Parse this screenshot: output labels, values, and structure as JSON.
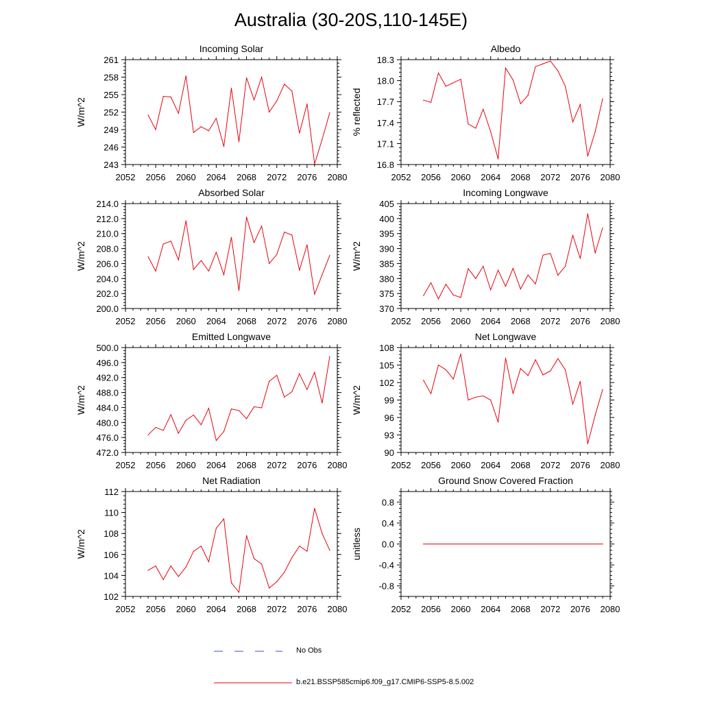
{
  "title": "Australia (30-20S,110-145E)",
  "legend": {
    "obs_label": "No Obs",
    "model_label": "b.e21.BSSP585cmip6.f09_g17.CMIP6-SSP5-8.5.002",
    "obs_color": "#3b4bc8",
    "model_color": "#e8000b"
  },
  "chart_data": [
    {
      "type": "line",
      "title": "Incoming Solar",
      "ylabel": "W/m^2",
      "xlim": [
        2052,
        2080
      ],
      "ylim": [
        243,
        261
      ],
      "xticks": [
        "2052",
        "2056",
        "2060",
        "2064",
        "2068",
        "2072",
        "2076",
        "2080"
      ],
      "yticks": [
        "243",
        "246",
        "249",
        "252",
        "255",
        "258",
        "261"
      ],
      "x": [
        2055,
        2056,
        2057,
        2058,
        2059,
        2060,
        2061,
        2062,
        2063,
        2064,
        2065,
        2066,
        2067,
        2068,
        2069,
        2070,
        2071,
        2072,
        2073,
        2074,
        2075,
        2076,
        2077,
        2078,
        2079
      ],
      "series": [
        {
          "values": [
            251.5,
            249.0,
            254.7,
            254.6,
            251.8,
            258.2,
            248.5,
            249.5,
            248.8,
            250.9,
            246.1,
            256.1,
            246.9,
            257.9,
            254.1,
            258.0,
            252.0,
            253.9,
            256.8,
            255.6,
            248.4,
            253.4,
            243.1,
            247.3,
            251.9
          ]
        }
      ]
    },
    {
      "type": "line",
      "title": "Albedo",
      "ylabel": "% reflected",
      "xlim": [
        2052,
        2080
      ],
      "ylim": [
        16.8,
        18.3
      ],
      "xticks": [
        "2052",
        "2056",
        "2060",
        "2064",
        "2068",
        "2072",
        "2076",
        "2080"
      ],
      "yticks": [
        "16.8",
        "17.1",
        "17.4",
        "17.7",
        "18.0",
        "18.3"
      ],
      "x": [
        2055,
        2056,
        2057,
        2058,
        2059,
        2060,
        2061,
        2062,
        2063,
        2064,
        2065,
        2066,
        2067,
        2068,
        2069,
        2070,
        2071,
        2072,
        2073,
        2074,
        2075,
        2076,
        2077,
        2078,
        2079
      ],
      "series": [
        {
          "values": [
            17.72,
            17.69,
            18.11,
            17.92,
            17.97,
            18.02,
            17.38,
            17.32,
            17.59,
            17.27,
            16.88,
            18.18,
            18.01,
            17.67,
            17.79,
            18.2,
            18.24,
            18.28,
            18.14,
            17.92,
            17.41,
            17.66,
            16.92,
            17.27,
            17.74
          ]
        }
      ]
    },
    {
      "type": "line",
      "title": "Absorbed Solar",
      "ylabel": "W/m^2",
      "xlim": [
        2052,
        2080
      ],
      "ylim": [
        200.0,
        214.0
      ],
      "xticks": [
        "2052",
        "2056",
        "2060",
        "2064",
        "2068",
        "2072",
        "2076",
        "2080"
      ],
      "yticks": [
        "200.0",
        "202.0",
        "204.0",
        "206.0",
        "208.0",
        "210.0",
        "212.0",
        "214.0"
      ],
      "x": [
        2055,
        2056,
        2057,
        2058,
        2059,
        2060,
        2061,
        2062,
        2063,
        2064,
        2065,
        2066,
        2067,
        2068,
        2069,
        2070,
        2071,
        2072,
        2073,
        2074,
        2075,
        2076,
        2077,
        2078,
        2079
      ],
      "series": [
        {
          "values": [
            206.9,
            205.0,
            208.6,
            209.0,
            206.5,
            211.7,
            205.2,
            206.4,
            205.0,
            207.5,
            204.5,
            209.5,
            202.4,
            212.2,
            208.8,
            211.0,
            206.0,
            207.2,
            210.2,
            209.8,
            205.1,
            208.5,
            201.9,
            204.5,
            207.1
          ]
        }
      ]
    },
    {
      "type": "line",
      "title": "Incoming Longwave",
      "ylabel": "W/m^2",
      "xlim": [
        2052,
        2080
      ],
      "ylim": [
        370,
        405
      ],
      "xticks": [
        "2052",
        "2056",
        "2060",
        "2064",
        "2068",
        "2072",
        "2076",
        "2080"
      ],
      "yticks": [
        "370",
        "375",
        "380",
        "385",
        "390",
        "395",
        "400",
        "405"
      ],
      "x": [
        2055,
        2056,
        2057,
        2058,
        2059,
        2060,
        2061,
        2062,
        2063,
        2064,
        2065,
        2066,
        2067,
        2068,
        2069,
        2070,
        2071,
        2072,
        2073,
        2074,
        2075,
        2076,
        2077,
        2078,
        2079
      ],
      "series": [
        {
          "values": [
            374.3,
            378.6,
            373.2,
            378.1,
            374.5,
            373.7,
            383.3,
            380.0,
            384.1,
            376.2,
            382.8,
            377.4,
            383.4,
            376.5,
            381.2,
            378.2,
            387.8,
            388.4,
            381.1,
            384.1,
            394.4,
            386.7,
            401.6,
            388.5,
            396.9
          ]
        }
      ]
    },
    {
      "type": "line",
      "title": "Emitted Longwave",
      "ylabel": "W/m^2",
      "xlim": [
        2052,
        2080
      ],
      "ylim": [
        472.0,
        500.0
      ],
      "xticks": [
        "2052",
        "2056",
        "2060",
        "2064",
        "2068",
        "2072",
        "2076",
        "2080"
      ],
      "yticks": [
        "472.0",
        "476.0",
        "480.0",
        "484.0",
        "488.0",
        "492.0",
        "496.0",
        "500.0"
      ],
      "x": [
        2055,
        2056,
        2057,
        2058,
        2059,
        2060,
        2061,
        2062,
        2063,
        2064,
        2065,
        2066,
        2067,
        2068,
        2069,
        2070,
        2071,
        2072,
        2073,
        2074,
        2075,
        2076,
        2077,
        2078,
        2079
      ],
      "series": [
        {
          "values": [
            476.7,
            478.7,
            477.9,
            482.1,
            477.1,
            480.6,
            482.0,
            479.4,
            483.8,
            475.2,
            477.6,
            483.6,
            483.2,
            481.0,
            484.2,
            483.9,
            491.0,
            492.6,
            486.8,
            488.2,
            493.0,
            488.8,
            493.4,
            485.2,
            497.6
          ]
        }
      ]
    },
    {
      "type": "line",
      "title": "Net Longwave",
      "ylabel": "W/m^2",
      "xlim": [
        2052,
        2080
      ],
      "ylim": [
        90,
        108
      ],
      "xticks": [
        "2052",
        "2056",
        "2060",
        "2064",
        "2068",
        "2072",
        "2076",
        "2080"
      ],
      "yticks": [
        "90",
        "93",
        "96",
        "99",
        "102",
        "105",
        "108"
      ],
      "x": [
        2055,
        2056,
        2057,
        2058,
        2059,
        2060,
        2061,
        2062,
        2063,
        2064,
        2065,
        2066,
        2067,
        2068,
        2069,
        2070,
        2071,
        2072,
        2073,
        2074,
        2075,
        2076,
        2077,
        2078,
        2079
      ],
      "series": [
        {
          "values": [
            102.4,
            100.1,
            105.0,
            104.2,
            102.6,
            106.9,
            99.0,
            99.5,
            99.7,
            99.0,
            95.2,
            106.2,
            100.1,
            104.4,
            103.2,
            105.9,
            103.3,
            104.0,
            106.1,
            104.2,
            98.3,
            102.2,
            91.5,
            96.4,
            100.8
          ]
        }
      ]
    },
    {
      "type": "line",
      "title": "Net Radiation",
      "ylabel": "W/m^2",
      "xlim": [
        2052,
        2080
      ],
      "ylim": [
        102,
        112
      ],
      "xticks": [
        "2052",
        "2056",
        "2060",
        "2064",
        "2068",
        "2072",
        "2076",
        "2080"
      ],
      "yticks": [
        "102",
        "104",
        "106",
        "108",
        "110",
        "112"
      ],
      "x": [
        2055,
        2056,
        2057,
        2058,
        2059,
        2060,
        2061,
        2062,
        2063,
        2064,
        2065,
        2066,
        2067,
        2068,
        2069,
        2070,
        2071,
        2072,
        2073,
        2074,
        2075,
        2076,
        2077,
        2078,
        2079
      ],
      "series": [
        {
          "values": [
            104.5,
            104.9,
            103.6,
            104.9,
            103.9,
            104.8,
            106.3,
            106.8,
            105.3,
            108.5,
            109.4,
            103.3,
            102.4,
            107.8,
            105.6,
            105.1,
            102.8,
            103.4,
            104.3,
            105.7,
            106.8,
            106.3,
            110.4,
            108.0,
            106.4
          ]
        }
      ]
    },
    {
      "type": "line",
      "title": "Ground Snow Covered Fraction",
      "ylabel": "unitless",
      "xlim": [
        2052,
        2080
      ],
      "ylim": [
        -1.0,
        1.0
      ],
      "xticks": [
        "2052",
        "2056",
        "2060",
        "2064",
        "2068",
        "2072",
        "2076",
        "2080"
      ],
      "yticks": [
        "-0.8",
        "-0.4",
        "0.0",
        "0.4",
        "0.8"
      ],
      "ytick_values": [
        -0.8,
        -0.4,
        0.0,
        0.4,
        0.8
      ],
      "x": [
        2055,
        2056,
        2057,
        2058,
        2059,
        2060,
        2061,
        2062,
        2063,
        2064,
        2065,
        2066,
        2067,
        2068,
        2069,
        2070,
        2071,
        2072,
        2073,
        2074,
        2075,
        2076,
        2077,
        2078,
        2079
      ],
      "series": [
        {
          "values": [
            0,
            0,
            0,
            0,
            0,
            0,
            0,
            0,
            0,
            0,
            0,
            0,
            0,
            0,
            0,
            0,
            0,
            0,
            0,
            0,
            0,
            0,
            0,
            0,
            0
          ]
        }
      ]
    }
  ]
}
